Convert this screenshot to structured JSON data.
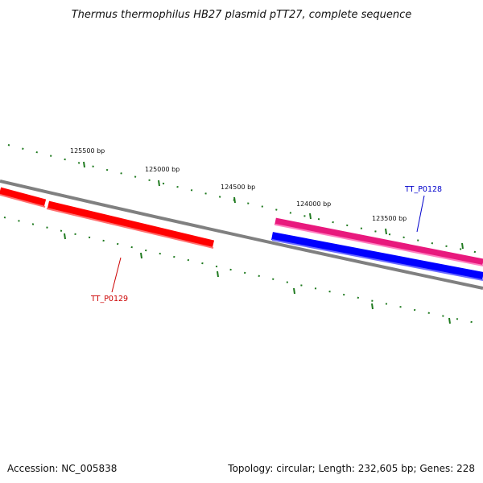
{
  "title": "Thermus thermophilus HB27 plasmid pTT27, complete sequence",
  "accession": "Accession: NC_005838",
  "summary": "Topology: circular; Length: 232,605 bp; Genes: 228",
  "scale_labels": [
    "125500 bp",
    "125000 bp",
    "124500 bp",
    "124000 bp",
    "123500 bp"
  ],
  "genes": [
    {
      "label": "TT_P0128",
      "strand": "forward",
      "color": "#0000ff",
      "label_color": "#0000cc"
    },
    {
      "label": "TT_P0129",
      "strand": "reverse",
      "color": "#ff0000",
      "label_color": "#cc0000"
    }
  ],
  "colors": {
    "backbone": "#808080",
    "ticks": "#1f7a1f",
    "forward_feature": "#e8197d",
    "forward_cds": "#0000ff",
    "reverse_cds": "#ff0000"
  }
}
